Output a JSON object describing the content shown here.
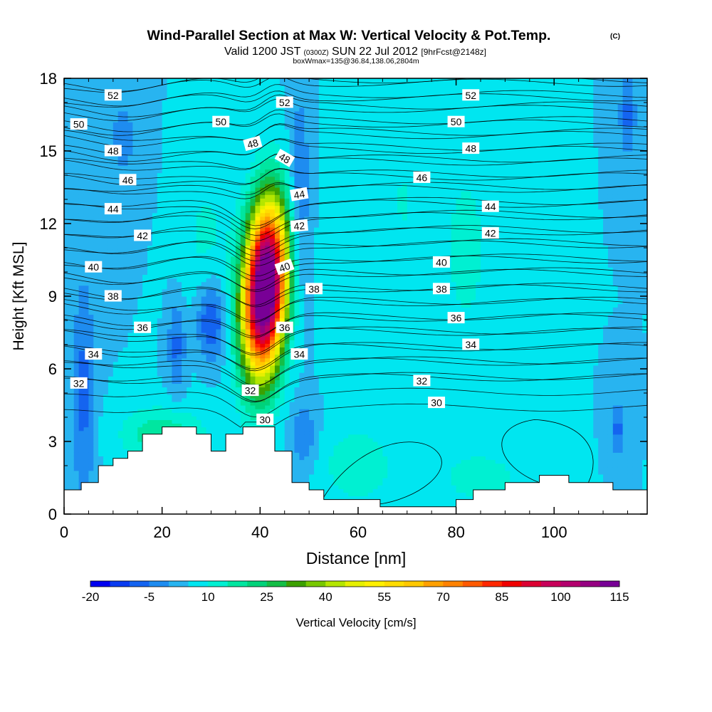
{
  "chart_data": {
    "type": "heatmap",
    "title": "Wind-Parallel Section at Max W: Vertical Velocity & Pot.Temp.",
    "title_mark": "(C)",
    "subtitle": {
      "valid": "Valid 1200 JST",
      "utc": "(0300Z)",
      "date": "SUN 22 Jul 2012",
      "fcst": "[9hrFcst@2148z]"
    },
    "subtitle2": "boxWmax=135@36.84,138.06,2804m",
    "xlabel": "Distance [nm]",
    "ylabel": "Height [Kft MSL]",
    "xlim": [
      0,
      119
    ],
    "ylim": [
      0,
      18
    ],
    "xticks": [
      0,
      20,
      40,
      60,
      80,
      100
    ],
    "yticks": [
      0,
      3,
      6,
      9,
      12,
      15,
      18
    ],
    "colorbar": {
      "label": "Vertical Velocity [cm/s]",
      "levels": [
        -20,
        -15,
        -10,
        -5,
        0,
        5,
        10,
        15,
        20,
        25,
        30,
        35,
        40,
        45,
        50,
        55,
        60,
        65,
        70,
        75,
        80,
        85,
        90,
        95,
        100,
        105,
        110,
        115
      ],
      "tick_labels": [
        "-20",
        "-5",
        "10",
        "25",
        "40",
        "55",
        "70",
        "85",
        "100",
        "115"
      ],
      "colors": [
        "#0000f0",
        "#0a3cf0",
        "#1464f0",
        "#1e8cf0",
        "#28b4f0",
        "#00e6f0",
        "#00f0d2",
        "#00e6a0",
        "#00d27a",
        "#14be46",
        "#3ca000",
        "#78c800",
        "#b4e600",
        "#e6f000",
        "#fff000",
        "#ffdc00",
        "#ffc800",
        "#ffa000",
        "#ff8200",
        "#ff5a00",
        "#ff2800",
        "#f00000",
        "#dc0032",
        "#c8005a",
        "#b4006e",
        "#960082",
        "#780096"
      ]
    },
    "background_w": 5,
    "updraft": {
      "x": 41,
      "y": 9.3,
      "sx": 4.0,
      "sy": 3.2,
      "peak": 135
    },
    "w_features": [
      {
        "x": 30,
        "y": 8.0,
        "sx": 2.2,
        "sy": 1.2,
        "amp": -18
      },
      {
        "x": 4,
        "y": 5.0,
        "sx": 1.6,
        "sy": 3.5,
        "amp": -12
      },
      {
        "x": 23,
        "y": 7.0,
        "sx": 1.3,
        "sy": 1.4,
        "amp": -12
      },
      {
        "x": 29,
        "y": 11.0,
        "sx": 4.0,
        "sy": 3.0,
        "amp": 6
      },
      {
        "x": 20,
        "y": 3.3,
        "sx": 6.0,
        "sy": 0.8,
        "amp": 14
      },
      {
        "x": 48,
        "y": 13.0,
        "sx": 1.5,
        "sy": 3.0,
        "amp": -12
      },
      {
        "x": 49,
        "y": 3.2,
        "sx": 2.0,
        "sy": 1.0,
        "amp": -10
      },
      {
        "x": 60,
        "y": 2.0,
        "sx": 6.0,
        "sy": 1.3,
        "amp": 8
      },
      {
        "x": 85,
        "y": 1.5,
        "sx": 6.0,
        "sy": 0.8,
        "amp": 8
      },
      {
        "x": 82,
        "y": 11.0,
        "sx": 5.0,
        "sy": 4.0,
        "amp": 6
      },
      {
        "x": 69,
        "y": 13.0,
        "sx": 3.0,
        "sy": 3.0,
        "amp": 5
      },
      {
        "x": 58,
        "y": 10.5,
        "sx": 3.0,
        "sy": 3.0,
        "amp": 5
      },
      {
        "x": 115,
        "y": 16.5,
        "sx": 1.2,
        "sy": 1.2,
        "amp": -12
      },
      {
        "x": 113,
        "y": 3.5,
        "sx": 1.0,
        "sy": 0.8,
        "amp": -12
      },
      {
        "x": 12,
        "y": 15.5,
        "sx": 3.0,
        "sy": 2.0,
        "amp": -6
      }
    ],
    "terrain": [
      {
        "x": 0,
        "h": 1.0
      },
      {
        "x": 3.5,
        "h": 1.3
      },
      {
        "x": 7,
        "h": 2.0
      },
      {
        "x": 10,
        "h": 2.3
      },
      {
        "x": 13,
        "h": 2.6
      },
      {
        "x": 16,
        "h": 3.3
      },
      {
        "x": 20,
        "h": 3.6
      },
      {
        "x": 27,
        "h": 3.3
      },
      {
        "x": 30,
        "h": 2.6
      },
      {
        "x": 33,
        "h": 3.3
      },
      {
        "x": 36.5,
        "h": 3.6
      },
      {
        "x": 43,
        "h": 2.6
      },
      {
        "x": 46.5,
        "h": 1.3
      },
      {
        "x": 50,
        "h": 1.0
      },
      {
        "x": 53,
        "h": 0.6
      },
      {
        "x": 64.5,
        "h": 0.3
      },
      {
        "x": 80,
        "h": 0.6
      },
      {
        "x": 83.5,
        "h": 1.0
      },
      {
        "x": 90,
        "h": 1.3
      },
      {
        "x": 97,
        "h": 1.6
      },
      {
        "x": 103,
        "h": 1.3
      },
      {
        "x": 112,
        "h": 1.0
      },
      {
        "x": 119,
        "h": 1.0
      }
    ],
    "theta_levels": [
      30,
      32,
      34,
      36,
      38,
      40,
      42,
      44,
      46,
      48,
      50,
      52
    ],
    "theta_labels": [
      {
        "text": "52",
        "x": 10,
        "y": 17.3,
        "angle": 0
      },
      {
        "text": "52",
        "x": 45,
        "y": 17.0,
        "angle": 0
      },
      {
        "text": "52",
        "x": 83,
        "y": 17.3,
        "angle": 0
      },
      {
        "text": "50",
        "x": 3,
        "y": 16.1,
        "angle": 0
      },
      {
        "text": "50",
        "x": 32,
        "y": 16.2,
        "angle": 0
      },
      {
        "text": "50",
        "x": 80,
        "y": 16.2,
        "angle": 0
      },
      {
        "text": "48",
        "x": 10,
        "y": 15.0,
        "angle": 0
      },
      {
        "text": "48",
        "x": 38.5,
        "y": 15.3,
        "angle": -15
      },
      {
        "text": "48",
        "x": 45,
        "y": 14.7,
        "angle": 30
      },
      {
        "text": "48",
        "x": 83,
        "y": 15.1,
        "angle": 0
      },
      {
        "text": "46",
        "x": 13,
        "y": 13.8,
        "angle": 0
      },
      {
        "text": "46",
        "x": 73,
        "y": 13.9,
        "angle": 0
      },
      {
        "text": "44",
        "x": 10,
        "y": 12.6,
        "angle": 0
      },
      {
        "text": "44",
        "x": 48,
        "y": 13.2,
        "angle": -10
      },
      {
        "text": "44",
        "x": 87,
        "y": 12.7,
        "angle": 0
      },
      {
        "text": "42",
        "x": 16,
        "y": 11.5,
        "angle": 0
      },
      {
        "text": "42",
        "x": 48,
        "y": 11.9,
        "angle": -5
      },
      {
        "text": "42",
        "x": 87,
        "y": 11.6,
        "angle": 0
      },
      {
        "text": "40",
        "x": 6,
        "y": 10.2,
        "angle": 0
      },
      {
        "text": "40",
        "x": 45,
        "y": 10.2,
        "angle": -20
      },
      {
        "text": "40",
        "x": 77,
        "y": 10.4,
        "angle": 0
      },
      {
        "text": "38",
        "x": 10,
        "y": 9.0,
        "angle": 0
      },
      {
        "text": "38",
        "x": 51,
        "y": 9.3,
        "angle": 0
      },
      {
        "text": "38",
        "x": 77,
        "y": 9.3,
        "angle": 0
      },
      {
        "text": "36",
        "x": 16,
        "y": 7.7,
        "angle": 0
      },
      {
        "text": "36",
        "x": 45,
        "y": 7.7,
        "angle": 0
      },
      {
        "text": "36",
        "x": 80,
        "y": 8.1,
        "angle": 0
      },
      {
        "text": "34",
        "x": 6,
        "y": 6.6,
        "angle": 0
      },
      {
        "text": "34",
        "x": 48,
        "y": 6.6,
        "angle": 0
      },
      {
        "text": "34",
        "x": 83,
        "y": 7.0,
        "angle": 0
      },
      {
        "text": "32",
        "x": 3,
        "y": 5.4,
        "angle": 0
      },
      {
        "text": "32",
        "x": 38,
        "y": 5.1,
        "angle": 0
      },
      {
        "text": "32",
        "x": 73,
        "y": 5.5,
        "angle": 0
      },
      {
        "text": "30",
        "x": 41,
        "y": 3.9,
        "angle": 0
      },
      {
        "text": "30",
        "x": 76,
        "y": 4.6,
        "angle": 0
      }
    ]
  }
}
